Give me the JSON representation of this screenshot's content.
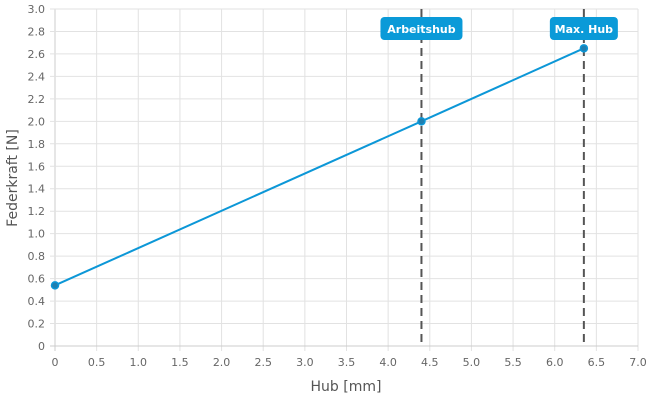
{
  "chart_data": {
    "type": "line",
    "title": "",
    "xlabel": "Hub [mm]",
    "ylabel": "Federkraft [N]",
    "xlim": [
      0,
      7
    ],
    "ylim": [
      0,
      3
    ],
    "x_ticks": [
      "0",
      "0.5",
      "1.0",
      "1.5",
      "2.0",
      "2.5",
      "3.0",
      "3.5",
      "4.0",
      "4.5",
      "5.0",
      "5.5",
      "6.0",
      "6.5",
      "7.0"
    ],
    "y_ticks": [
      "0",
      "0.2",
      "0.4",
      "0.6",
      "0.8",
      "1.0",
      "1.2",
      "1.4",
      "1.6",
      "1.8",
      "2.0",
      "2.2",
      "2.4",
      "2.6",
      "2.8",
      "3.0"
    ],
    "grid": true,
    "series": [
      {
        "name": "Federkraft",
        "color": "#0c97d7",
        "x": [
          0,
          4.4,
          6.35
        ],
        "y": [
          0.54,
          2.0,
          2.65
        ]
      }
    ],
    "annotations": [
      {
        "label": "Arbeitshub",
        "x": 4.4
      },
      {
        "label": "Max. Hub",
        "x": 6.35
      }
    ],
    "annotation_color": "#0a9ad8"
  }
}
